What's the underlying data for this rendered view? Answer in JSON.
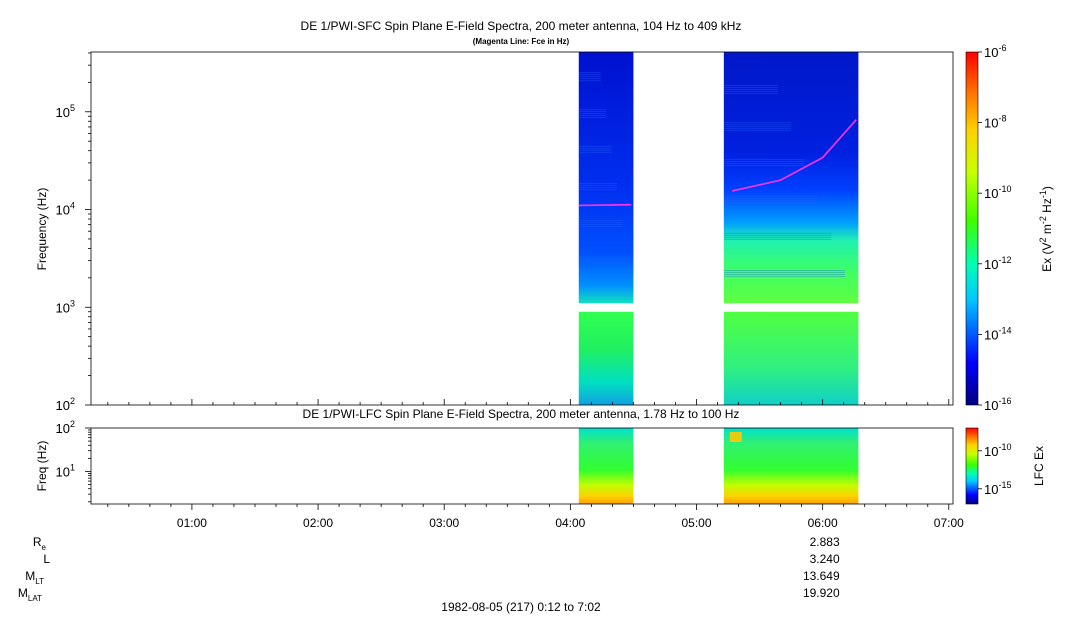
{
  "chart_data": [
    {
      "type": "heatmap",
      "title": "DE 1/PWI-SFC  Spin Plane E-Field Spectra, 200 meter antenna, 104 Hz to 409 kHz",
      "subtitle": "(Magenta Line: Fce in Hz)",
      "ylabel": "Frequency (Hz)",
      "yscale": "log",
      "ylim": [
        100,
        409000
      ],
      "yticks": [
        {
          "value": 100,
          "base": "10",
          "exp": "2"
        },
        {
          "value": 1000,
          "base": "10",
          "exp": "3"
        },
        {
          "value": 10000,
          "base": "10",
          "exp": "4"
        },
        {
          "value": 100000,
          "base": "10",
          "exp": "5"
        }
      ],
      "colorbar": {
        "label_pre": "Ex (V",
        "label_exp1": "2",
        "label_mid": " m",
        "label_exp2": "-2",
        "label_mid2": " Hz",
        "label_exp3": "-1",
        "label_post": ")",
        "scale": "log",
        "range": [
          1e-16,
          1e-06
        ],
        "ticks": [
          {
            "value": 1e-06,
            "base": "10",
            "exp": "-6"
          },
          {
            "value": 1e-08,
            "base": "10",
            "exp": "-8"
          },
          {
            "value": 1e-10,
            "base": "10",
            "exp": "-10"
          },
          {
            "value": 1e-12,
            "base": "10",
            "exp": "-12"
          },
          {
            "value": 1e-14,
            "base": "10",
            "exp": "-14"
          },
          {
            "value": 1e-16,
            "base": "10",
            "exp": "-16"
          }
        ]
      },
      "data_intervals": [
        {
          "start": "04:04",
          "end": "04:30"
        },
        {
          "start": "05:13",
          "end": "06:17"
        }
      ],
      "fce_line": [
        {
          "t": "04:04",
          "f": 11000
        },
        {
          "t": "04:29",
          "f": 11200
        },
        {
          "t": "05:17",
          "f": 15500
        },
        {
          "t": "05:40",
          "f": 20000
        },
        {
          "t": "06:00",
          "f": 34000
        },
        {
          "t": "06:16",
          "f": 83000
        }
      ]
    },
    {
      "type": "heatmap",
      "title": "DE 1/PWI-LFC  Spin Plane E-Field Spectra, 200 meter antenna, 1.78 Hz to 100 Hz",
      "ylabel": "Freq (Hz)",
      "yscale": "log",
      "ylim": [
        1.78,
        100
      ],
      "yticks": [
        {
          "value": 10,
          "base": "10",
          "exp": "1"
        },
        {
          "value": 100,
          "base": "10",
          "exp": "2"
        }
      ],
      "colorbar": {
        "label": "LFC Ex",
        "scale": "log",
        "range": [
          1e-17,
          1e-07
        ],
        "ticks": [
          {
            "value": 1e-10,
            "base": "10",
            "exp": "-10"
          },
          {
            "value": 1e-15,
            "base": "10",
            "exp": "-15"
          }
        ]
      },
      "data_intervals": [
        {
          "start": "04:04",
          "end": "04:30"
        },
        {
          "start": "05:13",
          "end": "06:17"
        }
      ]
    }
  ],
  "time_axis": {
    "range": [
      "00:12",
      "07:02"
    ],
    "ticks": [
      "01:00",
      "02:00",
      "03:00",
      "04:00",
      "05:00",
      "06:00",
      "07:00"
    ],
    "footer": "1982-08-05 (217) 0:12 to 7:02"
  },
  "ephemeris": {
    "at": "06:00",
    "rows": [
      {
        "label": "R",
        "sub": "e",
        "value": "2.883"
      },
      {
        "label": "L",
        "sub": "",
        "value": "3.240"
      },
      {
        "label": "M",
        "sub": "LT",
        "value": "13.649"
      },
      {
        "label": "M",
        "sub": "LAT",
        "value": "19.920"
      }
    ]
  }
}
